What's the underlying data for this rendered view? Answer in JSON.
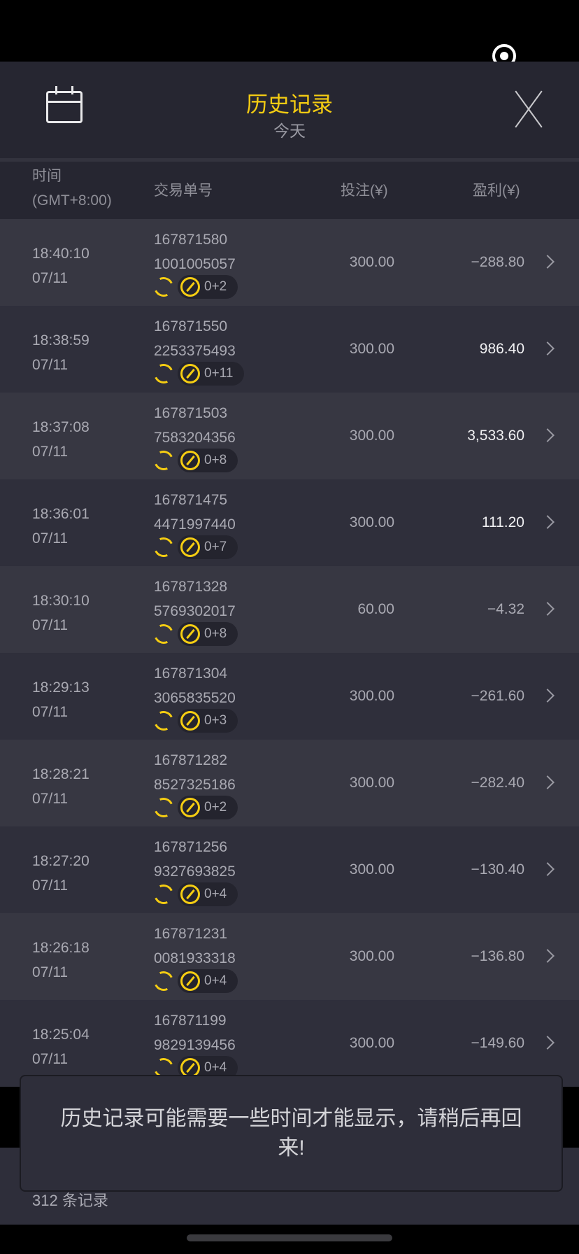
{
  "header": {
    "title": "历史记录",
    "subtitle": "今天"
  },
  "columns": {
    "time": "时间",
    "timezone": "(GMT+8:00)",
    "order": "交易单号",
    "bet": "投注(¥)",
    "profit": "盈利(¥)"
  },
  "rows": [
    {
      "time": "18:40:10",
      "date": "07/11",
      "id1": "167871580",
      "id2": "1001005057",
      "badge": "0+2",
      "bet": "300.00",
      "profit": "−288.80",
      "positive": false
    },
    {
      "time": "18:38:59",
      "date": "07/11",
      "id1": "167871550",
      "id2": "2253375493",
      "badge": "0+11",
      "bet": "300.00",
      "profit": "986.40",
      "positive": true
    },
    {
      "time": "18:37:08",
      "date": "07/11",
      "id1": "167871503",
      "id2": "7583204356",
      "badge": "0+8",
      "bet": "300.00",
      "profit": "3,533.60",
      "positive": true
    },
    {
      "time": "18:36:01",
      "date": "07/11",
      "id1": "167871475",
      "id2": "4471997440",
      "badge": "0+7",
      "bet": "300.00",
      "profit": "111.20",
      "positive": true
    },
    {
      "time": "18:30:10",
      "date": "07/11",
      "id1": "167871328",
      "id2": "5769302017",
      "badge": "0+8",
      "bet": "60.00",
      "profit": "−4.32",
      "positive": false
    },
    {
      "time": "18:29:13",
      "date": "07/11",
      "id1": "167871304",
      "id2": "3065835520",
      "badge": "0+3",
      "bet": "300.00",
      "profit": "−261.60",
      "positive": false
    },
    {
      "time": "18:28:21",
      "date": "07/11",
      "id1": "167871282",
      "id2": "8527325186",
      "badge": "0+2",
      "bet": "300.00",
      "profit": "−282.40",
      "positive": false
    },
    {
      "time": "18:27:20",
      "date": "07/11",
      "id1": "167871256",
      "id2": "9327693825",
      "badge": "0+4",
      "bet": "300.00",
      "profit": "−130.40",
      "positive": false
    },
    {
      "time": "18:26:18",
      "date": "07/11",
      "id1": "167871231",
      "id2": "0081933318",
      "badge": "0+4",
      "bet": "300.00",
      "profit": "−136.80",
      "positive": false
    },
    {
      "time": "18:25:04",
      "date": "07/11",
      "id1": "167871199",
      "id2": "9829139456",
      "badge": "0+4",
      "bet": "300.00",
      "profit": "−149.60",
      "positive": false
    }
  ],
  "footer": {
    "count": "312 条记录"
  },
  "toast": {
    "message": "历史记录可能需要一些时间才能显示，请稍后再回来!"
  },
  "colors": {
    "accent": "#f5cd12",
    "background": "#262631"
  }
}
